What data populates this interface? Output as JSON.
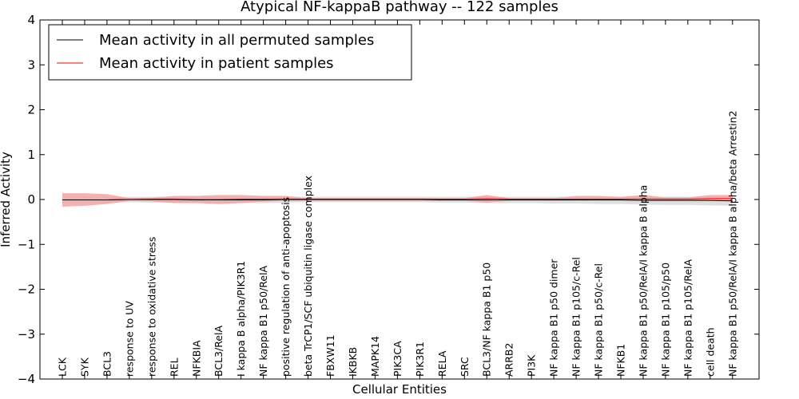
{
  "chart_data": {
    "type": "line",
    "title": "Atypical NF-kappaB pathway -- 122 samples",
    "xlabel": "Cellular Entities",
    "ylabel": "Inferred Activity",
    "ylim": [
      -4,
      4
    ],
    "yticks": [
      -4,
      -3,
      -2,
      -1,
      0,
      1,
      2,
      3,
      4
    ],
    "ytick_labels": [
      "−4",
      "−3",
      "−2",
      "−1",
      "0",
      "1",
      "2",
      "3",
      "4"
    ],
    "grid": false,
    "legend_position": "top-left",
    "categories": [
      "LCK",
      "SYK",
      "BCL3",
      "response to UV",
      "response to oxidative stress",
      "REL",
      "NFKBIA",
      "BCL3/RelA",
      "I kappa B alpha/PIK3R1",
      "NF kappa B1 p50/RelA",
      "positive regulation of anti-apoptosis",
      "beta TrCP1/SCF ubiquitin ligase complex",
      "FBXW11",
      "IKBKB",
      "MAPK14",
      "PIK3CA",
      "PIK3R1",
      "RELA",
      "SRC",
      "BCL3/NF kappa B1 p50",
      "ARRB2",
      "PI3K",
      "NF kappa B1 p50 dimer",
      "NF kappa B1 p105/c-Rel",
      "NF kappa B1 p50/c-Rel",
      "NFKB1",
      "NF kappa B1 p50/RelA/I kappa B alpha",
      "NF kappa B1 p105/p50",
      "NF kappa B1 p105/RelA",
      "cell death",
      "NF kappa B1 p50/RelA/I kappa B alpha/beta Arrestin2"
    ],
    "series": [
      {
        "name": "Mean activity in all permuted samples",
        "color": "#000000",
        "values": [
          -0.01,
          -0.01,
          -0.01,
          0,
          0,
          0,
          -0.01,
          -0.01,
          -0.01,
          -0.01,
          0,
          0,
          0,
          0,
          0,
          0,
          0,
          -0.01,
          -0.01,
          -0.01,
          -0.01,
          -0.01,
          -0.01,
          -0.01,
          -0.01,
          -0.01,
          -0.02,
          -0.02,
          -0.02,
          -0.02,
          -0.03
        ],
        "band_lower": [
          -0.08,
          -0.08,
          -0.08,
          -0.06,
          -0.07,
          -0.07,
          -0.08,
          -0.08,
          -0.08,
          -0.08,
          -0.07,
          -0.06,
          -0.06,
          -0.06,
          -0.06,
          -0.06,
          -0.06,
          -0.07,
          -0.07,
          -0.08,
          -0.08,
          -0.08,
          -0.09,
          -0.09,
          -0.1,
          -0.1,
          -0.11,
          -0.12,
          -0.12,
          -0.13,
          -0.14
        ],
        "band_upper": [
          0.06,
          0.06,
          0.06,
          0.06,
          0.06,
          0.06,
          0.06,
          0.06,
          0.06,
          0.06,
          0.06,
          0.06,
          0.06,
          0.06,
          0.06,
          0.06,
          0.06,
          0.06,
          0.06,
          0.06,
          0.06,
          0.06,
          0.06,
          0.06,
          0.06,
          0.06,
          0.06,
          0.06,
          0.06,
          0.06,
          0.06
        ],
        "band_color": "#d9d9d9"
      },
      {
        "name": "Mean activity in patient samples",
        "color": "#ff0000",
        "values": [
          -0.01,
          -0.01,
          -0.01,
          0,
          0.01,
          0.01,
          0,
          0,
          0.01,
          0.01,
          0.01,
          0.01,
          0.01,
          0.01,
          0.01,
          0.01,
          0.01,
          0.01,
          0.01,
          0.02,
          0.01,
          0.01,
          0.01,
          0.01,
          0.01,
          0.01,
          0.01,
          0.01,
          0.01,
          0.02,
          0.02
        ],
        "band_lower": [
          -0.16,
          -0.14,
          -0.1,
          -0.03,
          -0.04,
          -0.08,
          -0.08,
          -0.1,
          -0.08,
          -0.05,
          -0.03,
          -0.03,
          -0.03,
          -0.03,
          -0.03,
          -0.03,
          -0.03,
          -0.03,
          -0.03,
          -0.07,
          -0.03,
          -0.03,
          -0.03,
          -0.03,
          -0.03,
          -0.03,
          -0.03,
          -0.03,
          -0.03,
          -0.03,
          -0.04
        ],
        "band_upper": [
          0.14,
          0.14,
          0.12,
          0.03,
          0.04,
          0.08,
          0.08,
          0.1,
          0.1,
          0.08,
          0.08,
          0.03,
          0.03,
          0.03,
          0.03,
          0.03,
          0.03,
          0.03,
          0.03,
          0.1,
          0.03,
          0.03,
          0.03,
          0.08,
          0.08,
          0.06,
          0.1,
          0.05,
          0.05,
          0.1,
          0.1
        ],
        "band_color": "#f4a3a3"
      }
    ]
  }
}
